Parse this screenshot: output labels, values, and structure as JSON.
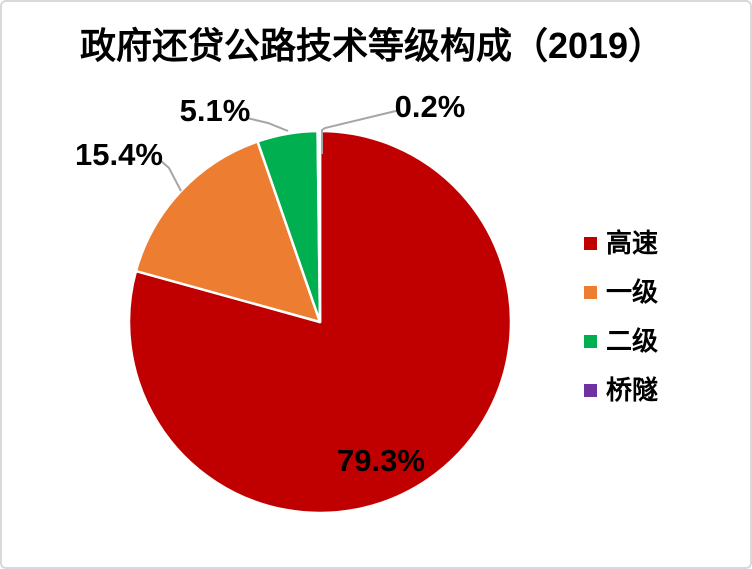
{
  "chart_data": {
    "type": "pie",
    "title": "政府还贷公路技术等级构成（2019）",
    "categories": [
      "高速",
      "一级",
      "二级",
      "桥隧"
    ],
    "values": [
      79.3,
      15.4,
      5.1,
      0.2
    ],
    "labels": [
      "79.3%",
      "15.4%",
      "5.1%",
      "0.2%"
    ],
    "colors": [
      "#C00000",
      "#ED7D31",
      "#00B050",
      "#7030A0"
    ],
    "slice_border_color": "#FFFFFF",
    "leader_line_color": "#A6A6A6",
    "legend_position": "right",
    "start_angle_deg": 0,
    "direction": "clockwise"
  },
  "legend": {
    "items": [
      {
        "label": "高速",
        "color": "#C00000"
      },
      {
        "label": "一级",
        "color": "#ED7D31"
      },
      {
        "label": "二级",
        "color": "#00B050"
      },
      {
        "label": "桥隧",
        "color": "#7030A0"
      }
    ]
  }
}
